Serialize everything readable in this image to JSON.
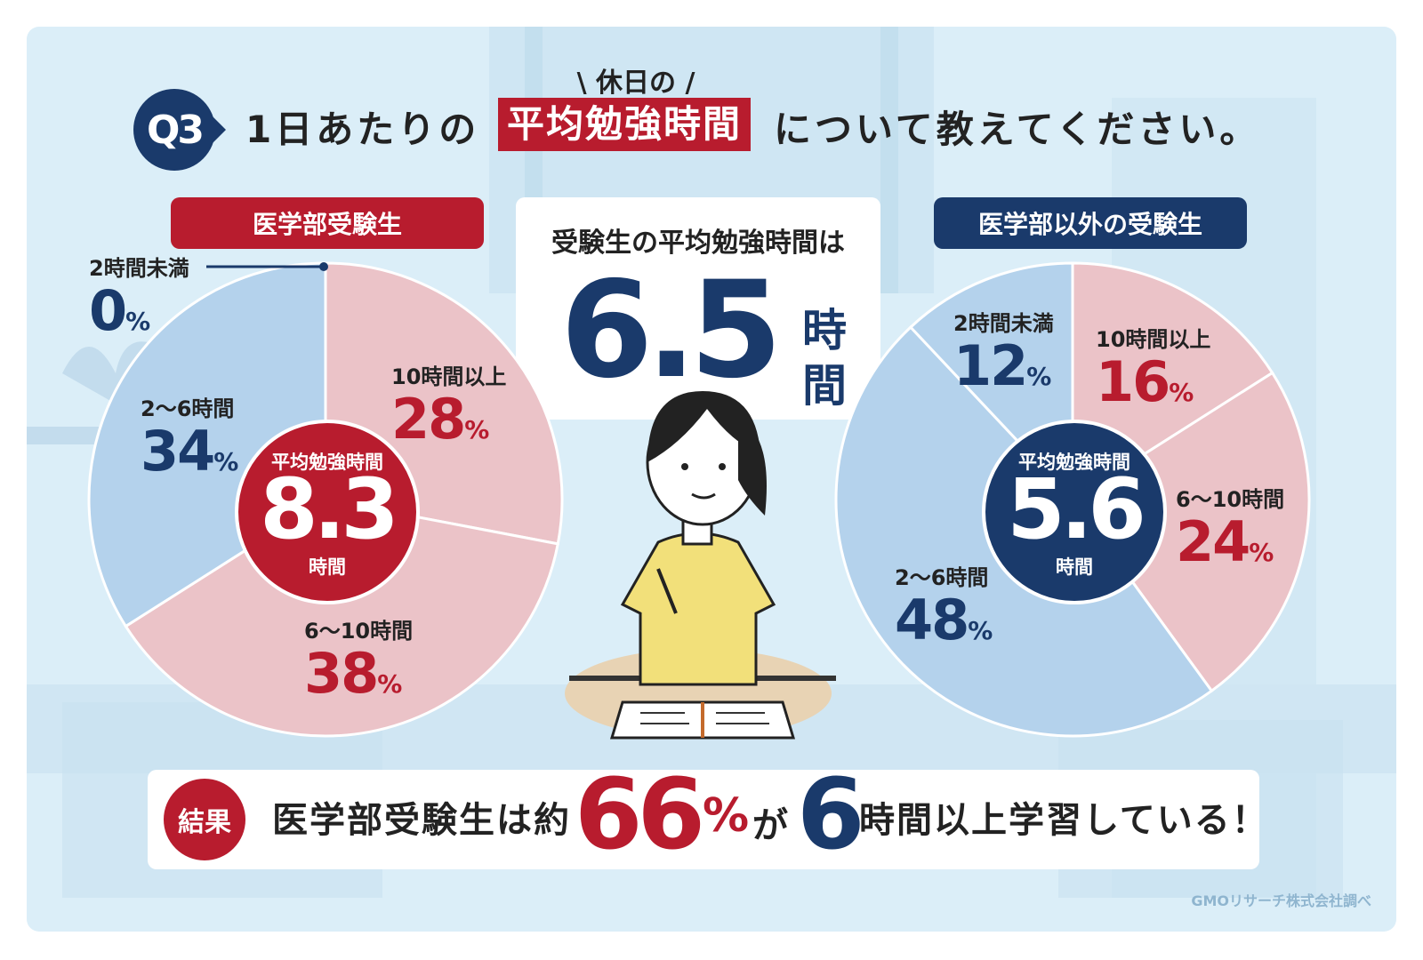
{
  "header": {
    "badge": "Q3",
    "kicker": "\\ 休日の /",
    "title_pre": "1日あたりの",
    "title_highlight": "平均勉強時間",
    "title_post": "について教えてください。"
  },
  "center": {
    "subtitle": "受験生の平均勉強時間は",
    "value": "6.5",
    "unit_1": "時",
    "unit_2": "間"
  },
  "colors": {
    "red": "#b81c2e",
    "navy": "#1a3a6b",
    "pink": "#ebc3c8",
    "lightblue": "#b4d2ec"
  },
  "chart_data": [
    {
      "type": "pie",
      "title": "医学部受験生",
      "center_label": "平均勉強時間",
      "center_value": "8.3",
      "center_unit": "時間",
      "slices": [
        {
          "label": "10時間以上",
          "value": 28,
          "value_text": "28",
          "unit": "%",
          "color": "#ebc3c8",
          "text_color": "#b81c2e"
        },
        {
          "label": "6〜10時間",
          "value": 38,
          "value_text": "38",
          "unit": "%",
          "color": "#ebc3c8",
          "text_color": "#b81c2e"
        },
        {
          "label": "2〜6時間",
          "value": 34,
          "value_text": "34",
          "unit": "%",
          "color": "#b4d2ec",
          "text_color": "#1a3a6b"
        },
        {
          "label": "2時間未満",
          "value": 0,
          "value_text": "0",
          "unit": "%",
          "color": "#b4d2ec",
          "text_color": "#1a3a6b"
        }
      ]
    },
    {
      "type": "pie",
      "title": "医学部以外の受験生",
      "center_label": "平均勉強時間",
      "center_value": "5.6",
      "center_unit": "時間",
      "slices": [
        {
          "label": "10時間以上",
          "value": 16,
          "value_text": "16",
          "unit": "%",
          "color": "#ebc3c8",
          "text_color": "#b81c2e"
        },
        {
          "label": "6〜10時間",
          "value": 24,
          "value_text": "24",
          "unit": "%",
          "color": "#ebc3c8",
          "text_color": "#b81c2e"
        },
        {
          "label": "2〜6時間",
          "value": 48,
          "value_text": "48",
          "unit": "%",
          "color": "#b4d2ec",
          "text_color": "#1a3a6b"
        },
        {
          "label": "2時間未満",
          "value": 12,
          "value_text": "12",
          "unit": "%",
          "color": "#b4d2ec",
          "text_color": "#1a3a6b"
        }
      ]
    }
  ],
  "result": {
    "badge": "結果",
    "text_a": "医学部受験生は約",
    "number": "66",
    "percent": "%",
    "particle": "が",
    "number2": "6",
    "text_b": "時間以上学習している！"
  },
  "source": "GMOリサーチ株式会社調べ"
}
